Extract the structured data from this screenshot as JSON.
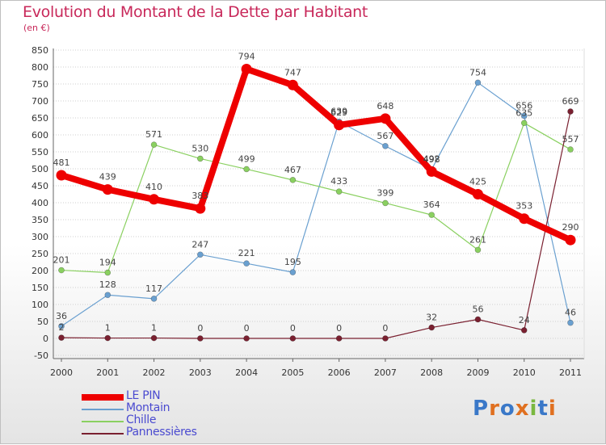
{
  "title": "Evolution du Montant de la Dette par Habitant",
  "subtitle": "(en €)",
  "colors": {
    "title": "#c8285a",
    "axis_text": "#333333",
    "grid": "#cfcfcf",
    "legend_text": "#4a4ad0"
  },
  "chart_data": {
    "type": "line",
    "title": "Evolution du Montant de la Dette par Habitant",
    "subtitle": "(en €)",
    "xlabel": "",
    "ylabel": "",
    "x": [
      "2000",
      "2001",
      "2002",
      "2003",
      "2004",
      "2005",
      "2006",
      "2007",
      "2008",
      "2009",
      "2010",
      "2011"
    ],
    "ylim": [
      -50,
      850
    ],
    "yticks": [
      -50,
      0,
      50,
      100,
      150,
      200,
      250,
      300,
      350,
      400,
      450,
      500,
      550,
      600,
      650,
      700,
      750,
      800,
      850
    ],
    "grid": true,
    "legend_position": "bottom-left",
    "series": [
      {
        "name": "LE PIN",
        "color": "#ee0000",
        "line_width": 8,
        "marker": "big-dot",
        "values": [
          481,
          439,
          410,
          383,
          794,
          747,
          629,
          648,
          492,
          425,
          353,
          290
        ]
      },
      {
        "name": "Montain",
        "color": "#6aa0d0",
        "line_width": 1.2,
        "marker": "dot",
        "values": [
          36,
          128,
          117,
          247,
          221,
          195,
          639,
          567,
          498,
          754,
          656,
          46
        ]
      },
      {
        "name": "Chille",
        "color": "#8ad060",
        "line_width": 1.2,
        "marker": "dot",
        "values": [
          201,
          194,
          571,
          530,
          499,
          467,
          433,
          399,
          364,
          261,
          635,
          557
        ]
      },
      {
        "name": "Pannessières",
        "color": "#7a2030",
        "line_width": 1.2,
        "marker": "dot",
        "values": [
          2,
          1,
          1,
          0,
          0,
          0,
          0,
          0,
          32,
          56,
          24,
          669
        ]
      }
    ]
  },
  "logo": {
    "letters": [
      {
        "char": "P",
        "color": "#3a78c8"
      },
      {
        "char": "r",
        "color": "#e07020"
      },
      {
        "char": "o",
        "color": "#3a78c8"
      },
      {
        "char": "x",
        "color": "#e07020"
      },
      {
        "char": "i",
        "color": "#7ab840"
      },
      {
        "char": "t",
        "color": "#3a78c8"
      },
      {
        "char": "i",
        "color": "#e07020"
      }
    ]
  }
}
